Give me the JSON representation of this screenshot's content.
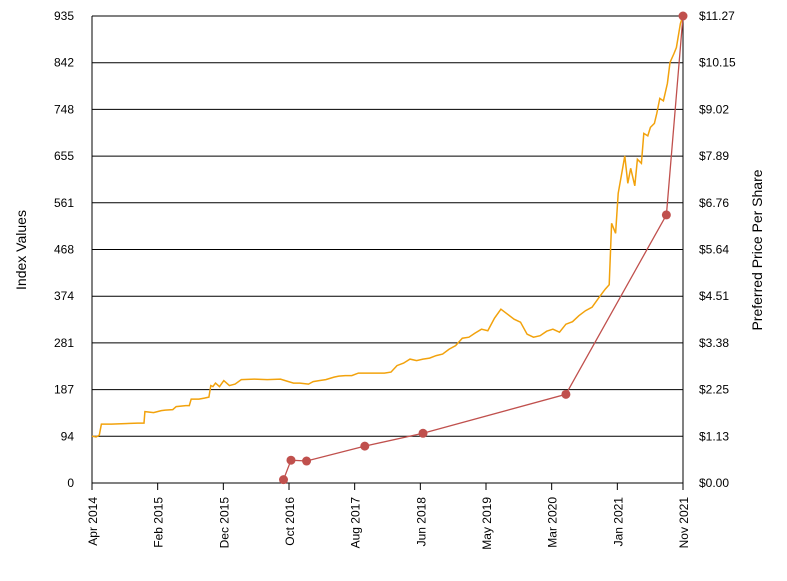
{
  "chart_data": {
    "type": "line",
    "ylabel_left": "Index Values",
    "ylabel_right": "Preferred Price Per Share",
    "left_ticks": [
      "0",
      "94",
      "187",
      "281",
      "374",
      "468",
      "561",
      "655",
      "748",
      "842",
      "935"
    ],
    "right_ticks": [
      "$0.00",
      "$1.13",
      "$2.25",
      "$3.38",
      "$4.51",
      "$5.64",
      "$6.76",
      "$7.89",
      "$9.02",
      "$10.15",
      "$11.27"
    ],
    "x_ticks": [
      "Apr 2014",
      "Feb 2015",
      "Dec 2015",
      "Oct 2016",
      "Aug 2017",
      "Jun 2018",
      "May 2019",
      "Mar 2020",
      "Jan 2021",
      "Nov 2021"
    ],
    "left_ylim": [
      0,
      935
    ],
    "right_ylim": [
      0,
      11.27
    ],
    "grid": true,
    "series": [
      {
        "axis": "left",
        "color": "#f2a20c",
        "points": [
          [
            "2014-04-01",
            94
          ],
          [
            "2014-04-20",
            92
          ],
          [
            "2014-05-05",
            96
          ],
          [
            "2014-05-15",
            118
          ],
          [
            "2014-07-01",
            118
          ],
          [
            "2014-09-01",
            119
          ],
          [
            "2014-11-01",
            120
          ],
          [
            "2014-12-01",
            120
          ],
          [
            "2014-12-05",
            143
          ],
          [
            "2015-01-15",
            141
          ],
          [
            "2015-02-20",
            145
          ],
          [
            "2015-03-10",
            146
          ],
          [
            "2015-04-15",
            147
          ],
          [
            "2015-05-01",
            153
          ],
          [
            "2015-06-15",
            155
          ],
          [
            "2015-07-01",
            155
          ],
          [
            "2015-07-10",
            168
          ],
          [
            "2015-08-15",
            168
          ],
          [
            "2015-09-10",
            170
          ],
          [
            "2015-10-01",
            172
          ],
          [
            "2015-10-10",
            195
          ],
          [
            "2015-10-20",
            193
          ],
          [
            "2015-11-01",
            200
          ],
          [
            "2015-11-20",
            193
          ],
          [
            "2015-12-10",
            205
          ],
          [
            "2016-01-05",
            195
          ],
          [
            "2016-02-01",
            198
          ],
          [
            "2016-03-01",
            207
          ],
          [
            "2016-05-01",
            208
          ],
          [
            "2016-07-01",
            207
          ],
          [
            "2016-09-01",
            208
          ],
          [
            "2016-10-01",
            204
          ],
          [
            "2016-11-01",
            200
          ],
          [
            "2016-12-01",
            200
          ],
          [
            "2017-01-10",
            198
          ],
          [
            "2017-02-01",
            203
          ],
          [
            "2017-03-01",
            205
          ],
          [
            "2017-04-01",
            207
          ],
          [
            "2017-05-10",
            212
          ],
          [
            "2017-06-01",
            214
          ],
          [
            "2017-07-01",
            215
          ],
          [
            "2017-08-01",
            215
          ],
          [
            "2017-09-01",
            220
          ],
          [
            "2017-11-01",
            220
          ],
          [
            "2018-01-01",
            220
          ],
          [
            "2018-02-01",
            222
          ],
          [
            "2018-03-01",
            235
          ],
          [
            "2018-04-01",
            240
          ],
          [
            "2018-05-01",
            248
          ],
          [
            "2018-06-01",
            245
          ],
          [
            "2018-07-01",
            248
          ],
          [
            "2018-08-01",
            250
          ],
          [
            "2018-09-01",
            255
          ],
          [
            "2018-10-01",
            258
          ],
          [
            "2018-11-01",
            268
          ],
          [
            "2018-12-01",
            275
          ],
          [
            "2019-01-01",
            290
          ],
          [
            "2019-02-01",
            292
          ],
          [
            "2019-03-01",
            300
          ],
          [
            "2019-04-01",
            308
          ],
          [
            "2019-05-01",
            305
          ],
          [
            "2019-06-01",
            330
          ],
          [
            "2019-07-01",
            348
          ],
          [
            "2019-08-01",
            338
          ],
          [
            "2019-09-01",
            328
          ],
          [
            "2019-10-01",
            322
          ],
          [
            "2019-11-01",
            298
          ],
          [
            "2019-12-01",
            292
          ],
          [
            "2020-01-01",
            295
          ],
          [
            "2020-02-01",
            304
          ],
          [
            "2020-03-01",
            308
          ],
          [
            "2020-04-01",
            302
          ],
          [
            "2020-05-01",
            318
          ],
          [
            "2020-06-01",
            323
          ],
          [
            "2020-07-01",
            335
          ],
          [
            "2020-08-01",
            345
          ],
          [
            "2020-09-01",
            352
          ],
          [
            "2020-10-01",
            370
          ],
          [
            "2020-11-01",
            388
          ],
          [
            "2020-11-20",
            397
          ],
          [
            "2020-12-01",
            520
          ],
          [
            "2020-12-20",
            500
          ],
          [
            "2021-01-01",
            580
          ],
          [
            "2021-01-20",
            625
          ],
          [
            "2021-02-01",
            655
          ],
          [
            "2021-02-15",
            600
          ],
          [
            "2021-03-01",
            630
          ],
          [
            "2021-03-20",
            595
          ],
          [
            "2021-04-01",
            648
          ],
          [
            "2021-04-20",
            640
          ],
          [
            "2021-05-01",
            700
          ],
          [
            "2021-05-20",
            695
          ],
          [
            "2021-06-01",
            712
          ],
          [
            "2021-06-20",
            720
          ],
          [
            "2021-07-01",
            740
          ],
          [
            "2021-07-15",
            770
          ],
          [
            "2021-08-01",
            765
          ],
          [
            "2021-08-20",
            800
          ],
          [
            "2021-09-01",
            842
          ],
          [
            "2021-09-20",
            860
          ],
          [
            "2021-10-01",
            872
          ],
          [
            "2021-10-20",
            920
          ],
          [
            "2021-11-01",
            935
          ]
        ]
      },
      {
        "axis": "right",
        "color": "#c0504d",
        "points": [
          [
            "2016-09-15",
            0.08
          ],
          [
            "2016-10-20",
            0.55
          ],
          [
            "2017-01-01",
            0.53
          ],
          [
            "2017-10-01",
            0.89
          ],
          [
            "2018-07-01",
            1.2
          ],
          [
            "2020-05-01",
            2.14
          ],
          [
            "2021-08-15",
            6.47
          ],
          [
            "2021-11-01",
            11.27
          ]
        ]
      }
    ]
  },
  "colors": {
    "grid": "#000000",
    "index_line": "#f2a20c",
    "price_line": "#c0504d"
  }
}
